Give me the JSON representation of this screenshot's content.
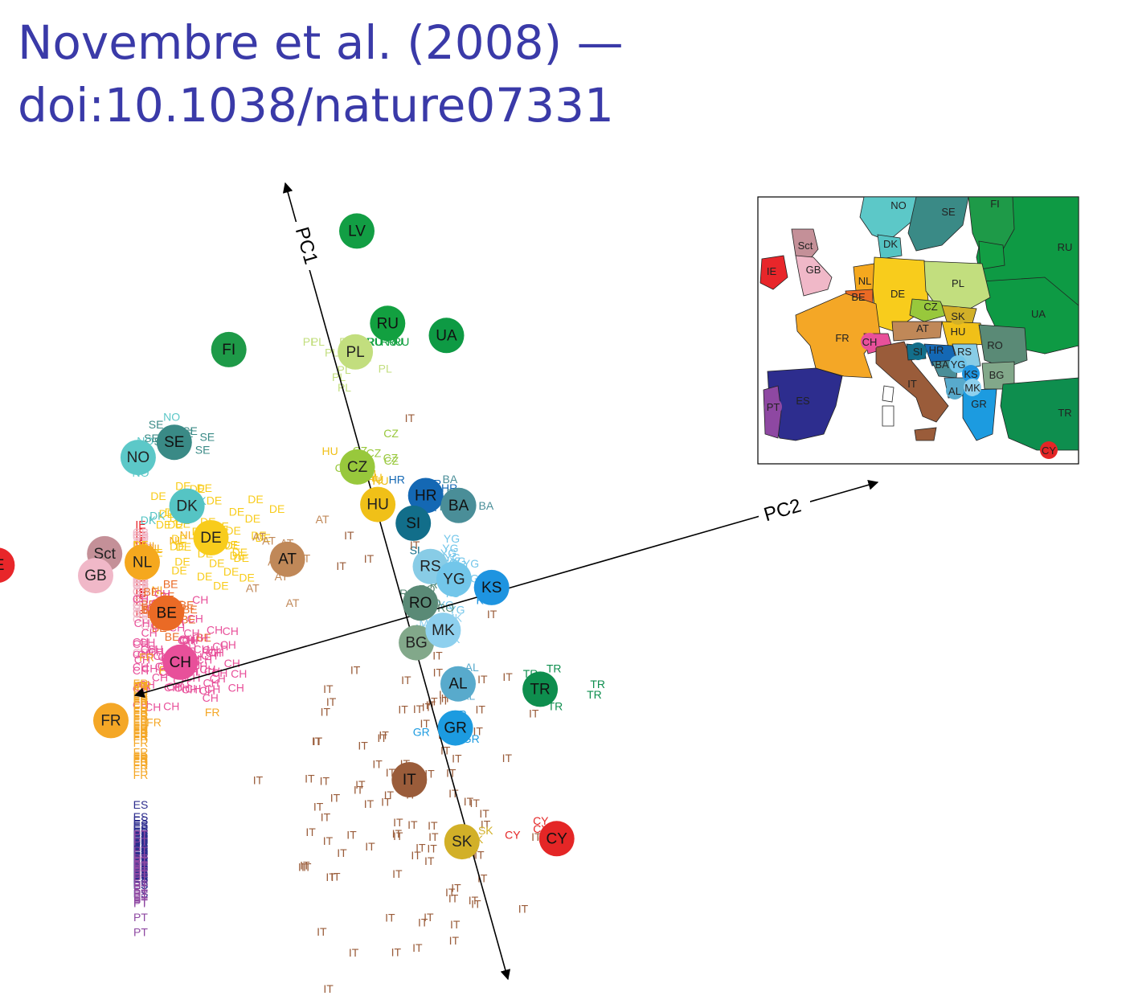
{
  "slide": {
    "title_line1": "Novembre et al. (2008) —",
    "title_line2": "doi:10.1038/nature07331"
  },
  "figure": {
    "axis_pc1_label": "PC1",
    "axis_pc2_label": "PC2"
  },
  "colors": {
    "IE": "#e8262a",
    "GB": "#f0b8c8",
    "Sct": "#c49098",
    "NL": "#f5a81e",
    "BE": "#ea6a25",
    "DE": "#f8cc1c",
    "DK": "#55c4c4",
    "NO": "#5cc8c8",
    "SE": "#3a8a86",
    "FI": "#1e9a48",
    "LV": "#129e44",
    "RU": "#12a040",
    "UA": "#0e9a44",
    "PL": "#c2de7e",
    "CZ": "#98c83c",
    "HU": "#f0c018",
    "SK": "#d2b028",
    "AT": "#c08858",
    "CH": "#e8509a",
    "FR": "#f4a726",
    "HR": "#1468b4",
    "SI": "#126e8a",
    "BA": "#4a8e98",
    "RS": "#88cce6",
    "YG": "#72c6ea",
    "RO": "#5a8a76",
    "BG": "#82a88a",
    "MK": "#8ed0ee",
    "KS": "#1e94e0",
    "AL": "#58aacc",
    "GR": "#1c9be0",
    "TR": "#0e8e4e",
    "CY": "#e42626",
    "IT": "#9a5c3a",
    "ES": "#2d2d8e",
    "PT": "#8e48a2"
  },
  "chart_data": {
    "type": "scatter",
    "title": "",
    "xlabel": "PC2",
    "ylabel": "PC1",
    "population_centroids": [
      {
        "label": "IE",
        "pc2": -0.8,
        "pc1": 1.02
      },
      {
        "label": "Sct",
        "pc2": -0.58,
        "pc1": 0.98
      },
      {
        "label": "GB",
        "pc2": -0.61,
        "pc1": 0.94
      },
      {
        "label": "NL",
        "pc2": -0.51,
        "pc1": 0.94
      },
      {
        "label": "BE",
        "pc2": -0.49,
        "pc1": 0.82
      },
      {
        "label": "DE",
        "pc2": -0.36,
        "pc1": 0.95
      },
      {
        "label": "DK",
        "pc2": -0.39,
        "pc1": 1.03
      },
      {
        "label": "NO",
        "pc2": -0.46,
        "pc1": 1.16
      },
      {
        "label": "SE",
        "pc2": -0.38,
        "pc1": 1.17
      },
      {
        "label": "FI",
        "pc2": -0.22,
        "pc1": 1.33
      },
      {
        "label": "LV",
        "pc2": 0.1,
        "pc1": 1.5
      },
      {
        "label": "RU",
        "pc2": 0.11,
        "pc1": 1.29
      },
      {
        "label": "PL",
        "pc2": 0.03,
        "pc1": 1.25
      },
      {
        "label": "UA",
        "pc2": 0.22,
        "pc1": 1.23
      },
      {
        "label": "CZ",
        "pc2": -0.03,
        "pc1": 1.01
      },
      {
        "label": "HU",
        "pc2": -0.01,
        "pc1": 0.92
      },
      {
        "label": "AT",
        "pc2": -0.22,
        "pc1": 0.86
      },
      {
        "label": "CH",
        "pc2": -0.49,
        "pc1": 0.71
      },
      {
        "label": "FR",
        "pc2": -0.66,
        "pc1": 0.63
      },
      {
        "label": "HR",
        "pc2": 0.09,
        "pc1": 0.91
      },
      {
        "label": "SI",
        "pc2": 0.05,
        "pc1": 0.86
      },
      {
        "label": "BA",
        "pc2": 0.15,
        "pc1": 0.87
      },
      {
        "label": "RS",
        "pc2": 0.06,
        "pc1": 0.76
      },
      {
        "label": "YG",
        "pc2": 0.1,
        "pc1": 0.72
      },
      {
        "label": "RO",
        "pc2": 0.02,
        "pc1": 0.69
      },
      {
        "label": "BG",
        "pc2": -0.01,
        "pc1": 0.61
      },
      {
        "label": "MK",
        "pc2": 0.05,
        "pc1": 0.62
      },
      {
        "label": "KS",
        "pc2": 0.17,
        "pc1": 0.68
      },
      {
        "label": "AL",
        "pc2": 0.05,
        "pc1": 0.5
      },
      {
        "label": "GR",
        "pc2": 0.02,
        "pc1": 0.41
      },
      {
        "label": "TR",
        "pc2": 0.21,
        "pc1": 0.44
      },
      {
        "label": "CY",
        "pc2": 0.16,
        "pc1": 0.12
      },
      {
        "label": "IT",
        "pc2": -0.1,
        "pc1": 0.33
      },
      {
        "label": "SK",
        "pc2": -0.03,
        "pc1": 0.17
      },
      {
        "label": "ES",
        "pc2": -1.03,
        "pc1": 0.43
      },
      {
        "label": "PT",
        "pc2": -1.03,
        "pc1": 0.38
      }
    ]
  },
  "inset_map": {
    "country_labels": [
      "NO",
      "SE",
      "FI",
      "DK",
      "Sct",
      "GB",
      "IE",
      "RU",
      "NL",
      "BE",
      "DE",
      "PL",
      "CZ",
      "SK",
      "AT",
      "HU",
      "UA",
      "FR",
      "CH",
      "SI",
      "HR",
      "RS",
      "RO",
      "BA",
      "YG",
      "KS",
      "BG",
      "IT",
      "AL",
      "MK",
      "ES",
      "PT",
      "GR",
      "TR",
      "CY"
    ]
  }
}
